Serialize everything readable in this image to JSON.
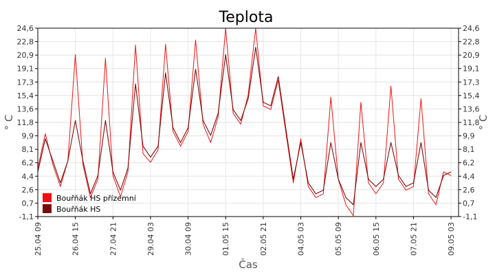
{
  "chart_data": {
    "type": "line",
    "title": "Teplota",
    "xlabel": "Čas",
    "ylabel": "° C",
    "y_ticks": [
      "-1,1",
      "0,7",
      "2,6",
      "4,4",
      "6,2",
      "8,1",
      "9,9",
      "11,8",
      "13,6",
      "15,4",
      "17,3",
      "19,1",
      "20,9",
      "22,8",
      "24,6"
    ],
    "ylim": [
      -1.1,
      24.6
    ],
    "x_ticks": [
      "25.04 09",
      "26.04 15",
      "27.04 21",
      "29.04 03",
      "30.04 09",
      "01.05 15",
      "02.05 21",
      "04.05 03",
      "05.05 09",
      "06.05 15",
      "07.05 21",
      "09.05 03"
    ],
    "xlim": [
      "25.04 09",
      "09.05 09"
    ],
    "grid": true,
    "legend_position": "bottom-left",
    "series": [
      {
        "name": "Bouřňák HS přízemní",
        "color": "#ee1111",
        "points": [
          [
            0,
            5.5
          ],
          [
            6,
            10.2
          ],
          [
            12,
            6.0
          ],
          [
            18,
            3.0
          ],
          [
            24,
            6.5
          ],
          [
            30,
            21.0
          ],
          [
            36,
            6.0
          ],
          [
            42,
            1.5
          ],
          [
            48,
            4.0
          ],
          [
            54,
            20.5
          ],
          [
            60,
            4.5
          ],
          [
            66,
            1.6
          ],
          [
            72,
            5.0
          ],
          [
            78,
            22.3
          ],
          [
            84,
            7.5
          ],
          [
            90,
            6.3
          ],
          [
            96,
            8.0
          ],
          [
            102,
            22.4
          ],
          [
            108,
            10.5
          ],
          [
            114,
            8.5
          ],
          [
            120,
            10.5
          ],
          [
            126,
            23.0
          ],
          [
            132,
            11.5
          ],
          [
            138,
            9.0
          ],
          [
            144,
            12.5
          ],
          [
            150,
            24.6
          ],
          [
            156,
            13.0
          ],
          [
            162,
            11.5
          ],
          [
            168,
            15.5
          ],
          [
            174,
            24.6
          ],
          [
            180,
            14.0
          ],
          [
            186,
            13.5
          ],
          [
            192,
            17.5
          ],
          [
            198,
            10.5
          ],
          [
            204,
            3.5
          ],
          [
            210,
            9.5
          ],
          [
            216,
            3.0
          ],
          [
            222,
            1.5
          ],
          [
            228,
            2.0
          ],
          [
            234,
            15.2
          ],
          [
            240,
            4.0
          ],
          [
            246,
            0.5
          ],
          [
            252,
            -1.0
          ],
          [
            258,
            14.5
          ],
          [
            264,
            3.5
          ],
          [
            270,
            2.0
          ],
          [
            276,
            3.5
          ],
          [
            282,
            16.7
          ],
          [
            288,
            4.0
          ],
          [
            294,
            2.5
          ],
          [
            300,
            3.0
          ],
          [
            306,
            15.0
          ],
          [
            312,
            2.0
          ],
          [
            318,
            0.5
          ],
          [
            324,
            5.0
          ],
          [
            330,
            4.5
          ]
        ]
      },
      {
        "name": "Bouřňák HS",
        "color": "#7a0a0a",
        "points": [
          [
            0,
            5.0
          ],
          [
            6,
            9.5
          ],
          [
            12,
            6.5
          ],
          [
            18,
            3.5
          ],
          [
            24,
            6.5
          ],
          [
            30,
            12.0
          ],
          [
            36,
            6.5
          ],
          [
            42,
            2.0
          ],
          [
            48,
            4.5
          ],
          [
            54,
            12.0
          ],
          [
            60,
            5.0
          ],
          [
            66,
            2.5
          ],
          [
            72,
            5.5
          ],
          [
            78,
            17.0
          ],
          [
            84,
            8.5
          ],
          [
            90,
            7.0
          ],
          [
            96,
            8.5
          ],
          [
            102,
            18.5
          ],
          [
            108,
            11.0
          ],
          [
            114,
            9.0
          ],
          [
            120,
            11.0
          ],
          [
            126,
            19.0
          ],
          [
            132,
            12.0
          ],
          [
            138,
            10.0
          ],
          [
            144,
            13.0
          ],
          [
            150,
            21.0
          ],
          [
            156,
            13.5
          ],
          [
            162,
            12.0
          ],
          [
            168,
            15.0
          ],
          [
            174,
            22.0
          ],
          [
            180,
            14.5
          ],
          [
            186,
            14.0
          ],
          [
            192,
            18.0
          ],
          [
            198,
            11.0
          ],
          [
            204,
            4.0
          ],
          [
            210,
            9.0
          ],
          [
            216,
            3.5
          ],
          [
            222,
            2.0
          ],
          [
            228,
            2.5
          ],
          [
            234,
            9.0
          ],
          [
            240,
            4.0
          ],
          [
            246,
            1.5
          ],
          [
            252,
            0.5
          ],
          [
            258,
            9.0
          ],
          [
            264,
            4.0
          ],
          [
            270,
            3.0
          ],
          [
            276,
            4.0
          ],
          [
            282,
            9.0
          ],
          [
            288,
            4.5
          ],
          [
            294,
            3.0
          ],
          [
            300,
            3.5
          ],
          [
            306,
            9.0
          ],
          [
            312,
            2.5
          ],
          [
            318,
            1.5
          ],
          [
            324,
            4.5
          ],
          [
            330,
            5.0
          ]
        ]
      }
    ]
  }
}
